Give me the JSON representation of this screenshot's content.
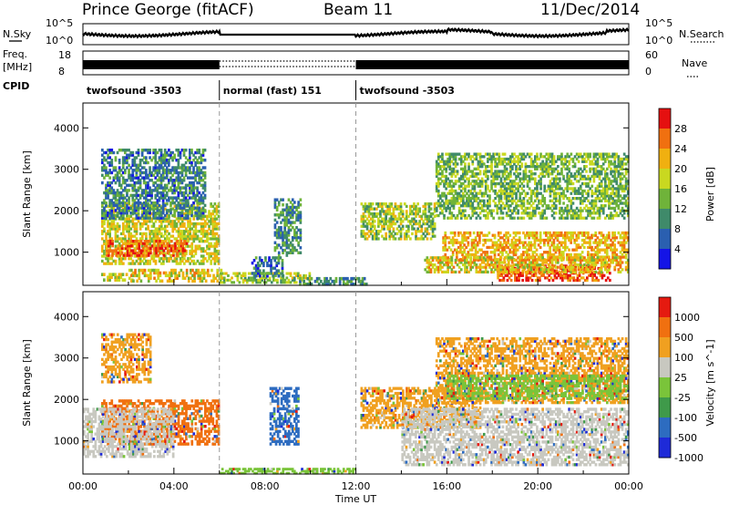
{
  "header": {
    "station": "Prince George (fitACF)",
    "beam": "Beam 11",
    "date": "11/Dec/2014"
  },
  "noise_panel": {
    "left_label": "N.Sky",
    "right_label": "N.Search",
    "ticks_left": [
      "10^5",
      "10^0"
    ],
    "ticks_right": [
      "10^5",
      "10^0"
    ]
  },
  "freq_panel": {
    "left_label_1": "Freq.",
    "left_label_2": "[MHz]",
    "right_label": "Nave",
    "ticks_left": [
      "18",
      "8"
    ],
    "ticks_right": [
      "60",
      "0"
    ]
  },
  "cpid": {
    "label": "CPID",
    "segments": [
      {
        "text": "twofsound -3503",
        "start_h": 0,
        "end_h": 6
      },
      {
        "text": "normal (fast) 151",
        "start_h": 6,
        "end_h": 12
      },
      {
        "text": "twofsound -3503",
        "start_h": 12,
        "end_h": 24
      }
    ]
  },
  "x_axis": {
    "label": "Time UT",
    "ticks": [
      "00:00",
      "04:00",
      "08:00",
      "12:00",
      "16:00",
      "20:00",
      "00:00"
    ]
  },
  "chart_data": [
    {
      "type": "heatmap",
      "name": "power",
      "ylabel": "Slant Range [km]",
      "ylim": [
        200,
        4600
      ],
      "yticks": [
        1000,
        2000,
        3000,
        4000
      ],
      "xlim_hours": [
        0,
        24
      ],
      "colorbar": {
        "label": "Power [dB]",
        "ticks": [
          "28",
          "24",
          "20",
          "16",
          "12",
          "8",
          "4"
        ],
        "range": [
          0,
          32
        ],
        "colors": [
          "#1414e6",
          "#2a5fb0",
          "#3f8a6a",
          "#6fb33a",
          "#c9d820",
          "#f0b010",
          "#f07010",
          "#e51010"
        ]
      },
      "blobs": [
        {
          "t0": 0.8,
          "t1": 6.0,
          "r0": 700,
          "r1": 2200,
          "v": 18
        },
        {
          "t0": 1.0,
          "t1": 4.6,
          "r0": 900,
          "r1": 1300,
          "v": 27
        },
        {
          "t0": 0.8,
          "t1": 5.4,
          "r0": 1800,
          "r1": 3500,
          "v": 9
        },
        {
          "t0": 0.8,
          "t1": 2.2,
          "r0": 300,
          "r1": 500,
          "v": 18
        },
        {
          "t0": 2.0,
          "t1": 6.2,
          "r0": 280,
          "r1": 600,
          "v": 20
        },
        {
          "t0": 6.0,
          "t1": 10.0,
          "r0": 250,
          "r1": 520,
          "v": 16
        },
        {
          "t0": 8.4,
          "t1": 9.6,
          "r0": 900,
          "r1": 2300,
          "v": 10
        },
        {
          "t0": 7.4,
          "t1": 8.8,
          "r0": 400,
          "r1": 900,
          "v": 8
        },
        {
          "t0": 9.5,
          "t1": 12.5,
          "r0": 200,
          "r1": 400,
          "v": 10
        },
        {
          "t0": 12.2,
          "t1": 15.5,
          "r0": 1300,
          "r1": 2200,
          "v": 16
        },
        {
          "t0": 15.5,
          "t1": 24.0,
          "r0": 1800,
          "r1": 3400,
          "v": 14
        },
        {
          "t0": 15.8,
          "t1": 24.0,
          "r0": 800,
          "r1": 1500,
          "v": 22
        },
        {
          "t0": 18.2,
          "t1": 23.2,
          "r0": 300,
          "r1": 700,
          "v": 27
        },
        {
          "t0": 15.0,
          "t1": 24.0,
          "r0": 500,
          "r1": 900,
          "v": 20
        }
      ]
    },
    {
      "type": "heatmap",
      "name": "velocity",
      "ylabel": "Slant Range [km]",
      "ylim": [
        200,
        4600
      ],
      "yticks": [
        1000,
        2000,
        3000,
        4000
      ],
      "xlim_hours": [
        0,
        24
      ],
      "colorbar": {
        "label": "Velocity [m s^-1]",
        "ticks": [
          "1000",
          "500",
          "100",
          "25",
          "-25",
          "-100",
          "-500",
          "-1000"
        ],
        "colors": [
          "#1e2ad8",
          "#2d6cc0",
          "#3f9a4a",
          "#7ac43a",
          "#c8c8c0",
          "#f0a020",
          "#f07010",
          "#e51a10"
        ]
      },
      "blobs": [
        {
          "t0": 0.8,
          "t1": 6.0,
          "r0": 900,
          "r1": 2000,
          "v": "#f07010"
        },
        {
          "t0": 0.0,
          "t1": 4.0,
          "r0": 600,
          "r1": 1800,
          "v": "#c8c8c0"
        },
        {
          "t0": 0.8,
          "t1": 3.0,
          "r0": 2400,
          "r1": 3600,
          "v": "#f0a020"
        },
        {
          "t0": 6.0,
          "t1": 12.0,
          "r0": 200,
          "r1": 350,
          "v": "#7ac43a"
        },
        {
          "t0": 8.2,
          "t1": 9.5,
          "r0": 900,
          "r1": 2300,
          "v": "#2d6cc0"
        },
        {
          "t0": 12.2,
          "t1": 17.5,
          "r0": 1300,
          "r1": 2300,
          "v": "#f0a020"
        },
        {
          "t0": 14.0,
          "t1": 24.0,
          "r0": 400,
          "r1": 1800,
          "v": "#c8c8c0"
        },
        {
          "t0": 15.5,
          "t1": 24.0,
          "r0": 1900,
          "r1": 3500,
          "v": "#f0a020"
        },
        {
          "t0": 16.0,
          "t1": 24.0,
          "r0": 2000,
          "r1": 2600,
          "v": "#7ac43a"
        }
      ]
    }
  ]
}
